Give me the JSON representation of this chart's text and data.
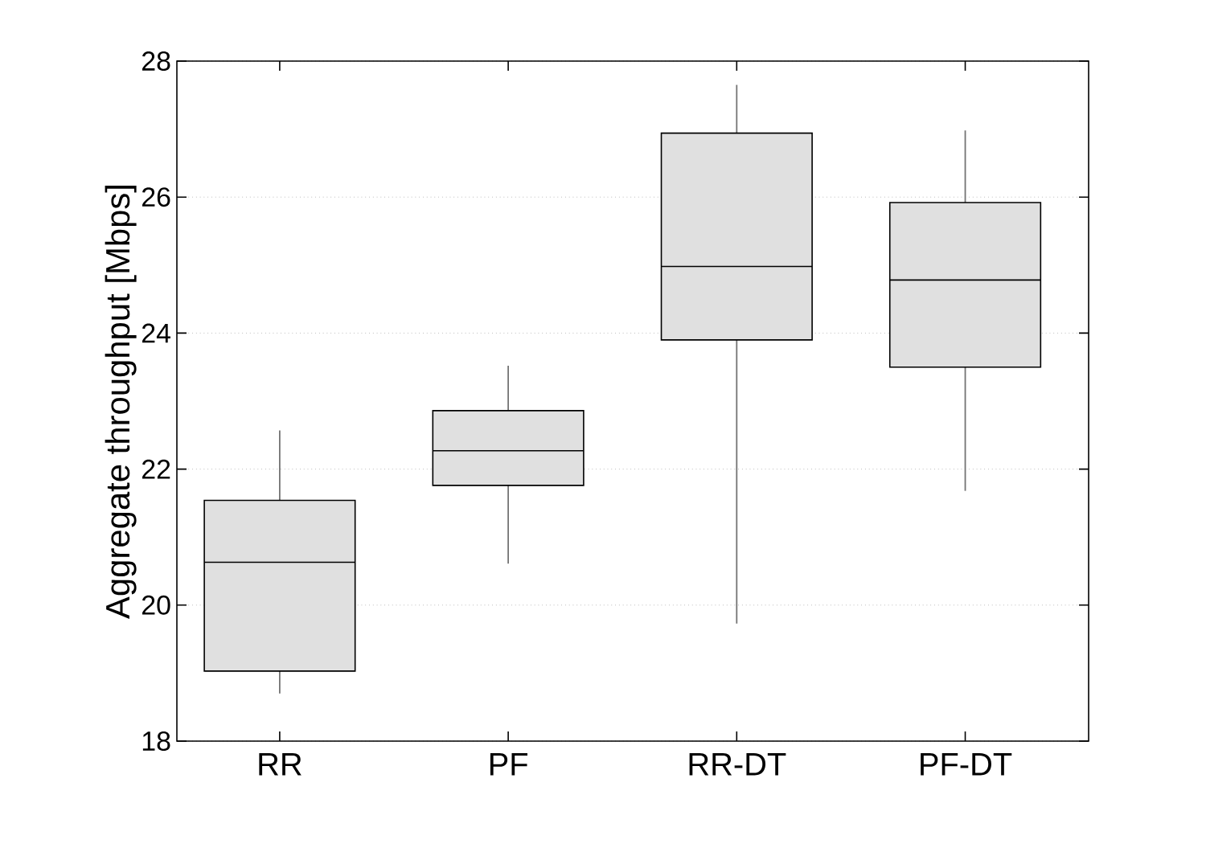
{
  "chart_data": {
    "type": "box",
    "ylabel": "Aggregate throughput [Mbps]",
    "categories": [
      "RR",
      "PF",
      "RR-DT",
      "PF-DT"
    ],
    "boxes": [
      {
        "low": 18.7,
        "q1": 19.03,
        "median": 20.63,
        "q3": 21.54,
        "high": 22.57
      },
      {
        "low": 20.61,
        "q1": 21.76,
        "median": 22.27,
        "q3": 22.86,
        "high": 23.52
      },
      {
        "low": 19.73,
        "q1": 23.9,
        "median": 24.98,
        "q3": 26.94,
        "high": 27.65
      },
      {
        "low": 21.68,
        "q1": 23.5,
        "median": 24.78,
        "q3": 25.92,
        "high": 26.98
      }
    ],
    "ylim": [
      18,
      28
    ],
    "yticks": [
      18,
      20,
      22,
      24,
      26,
      28
    ],
    "grid": "y"
  }
}
